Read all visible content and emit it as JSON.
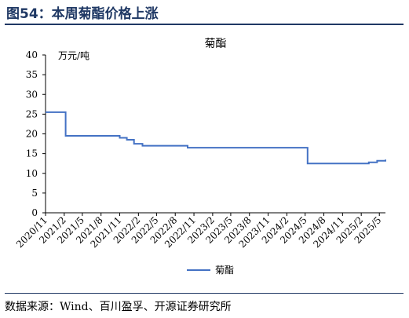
{
  "figure": {
    "title": "图54：本周菊酯价格上涨",
    "source": "数据来源：Wind、百川盈孚、开源证券研究所"
  },
  "chart_data": {
    "type": "line",
    "title": "菊酯",
    "unit_label": "万元/吨",
    "xlabel": "",
    "ylabel": "",
    "ylim": [
      0,
      40
    ],
    "yticks": [
      0,
      5,
      10,
      15,
      20,
      25,
      30,
      35,
      40
    ],
    "xlim": [
      "2020-11-01",
      "2025-05-31"
    ],
    "xticks": [
      "2020/11",
      "2021/2",
      "2021/5",
      "2021/8",
      "2021/11",
      "2022/2",
      "2022/5",
      "2022/8",
      "2022/11",
      "2023/2",
      "2023/5",
      "2023/8",
      "2023/11",
      "2024/2",
      "2024/5",
      "2024/8",
      "2024/11",
      "2025/2",
      "2025/5"
    ],
    "grid": false,
    "legend_position": "bottom",
    "series": [
      {
        "name": "菊酯",
        "color": "#4472c4",
        "step": true,
        "x": [
          "2020-11-01",
          "2021-02-08",
          "2021-11-01",
          "2021-12-06",
          "2022-01-10",
          "2022-02-21",
          "2022-04-11",
          "2022-10-01",
          "2024-05-13",
          "2025-01-20",
          "2025-03-10",
          "2025-04-20",
          "2025-05-31"
        ],
        "y": [
          25.5,
          19.5,
          19.0,
          18.5,
          17.5,
          17.0,
          17.0,
          16.5,
          12.5,
          12.5,
          12.8,
          13.2,
          13.5
        ]
      }
    ]
  }
}
